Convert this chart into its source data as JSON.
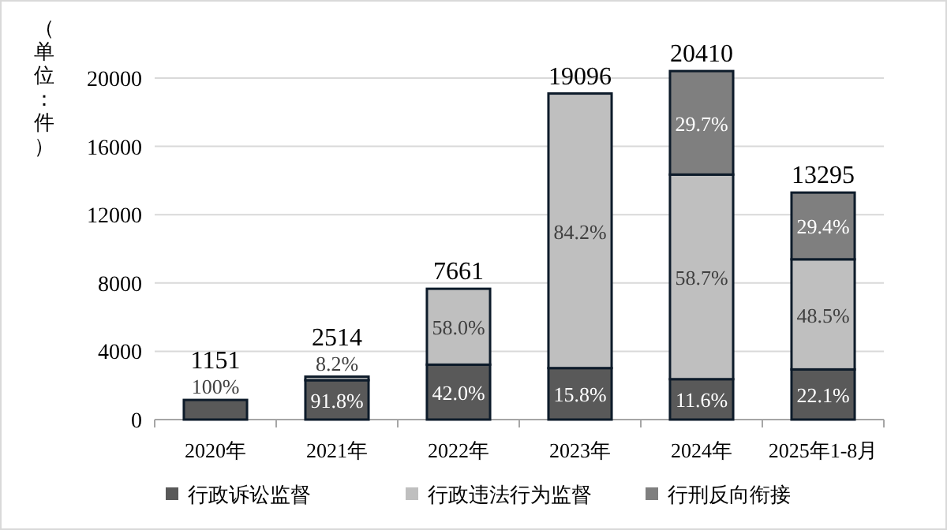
{
  "chart_data": {
    "type": "bar",
    "stacked": true,
    "ylabel": "（单位：件）",
    "categories": [
      "2020年",
      "2021年",
      "2022年",
      "2023年",
      "2024年",
      "2025年1-8月"
    ],
    "series": [
      {
        "name": "行政诉讼监督",
        "color": "#595959",
        "values": [
          1151,
          2308,
          3218,
          3017,
          2368,
          2938
        ]
      },
      {
        "name": "行政违法行为监督",
        "color": "#bfbfbf",
        "values": [
          null,
          206,
          4443,
          16079,
          11981,
          6448
        ]
      },
      {
        "name": "行刑反向衔接",
        "color": "#7f7f7f",
        "values": [
          null,
          null,
          null,
          null,
          6061,
          3909
        ]
      }
    ],
    "annotations": [
      "100%",
      "91.8%",
      "8.2%",
      "42.0%",
      "58.0%",
      "15.8%",
      "84.2%",
      "11.6%",
      "58.7%",
      "29.7%",
      "22.1%",
      "48.5%",
      "29.4%"
    ],
    "totals": [
      "1151",
      "2514",
      "7661",
      "19096",
      "20410",
      "13295"
    ],
    "ylim": [
      0,
      20600
    ],
    "yticks": [
      0,
      4000,
      8000,
      12000,
      16000,
      20000
    ],
    "grid": "y",
    "legend": "bottom"
  }
}
